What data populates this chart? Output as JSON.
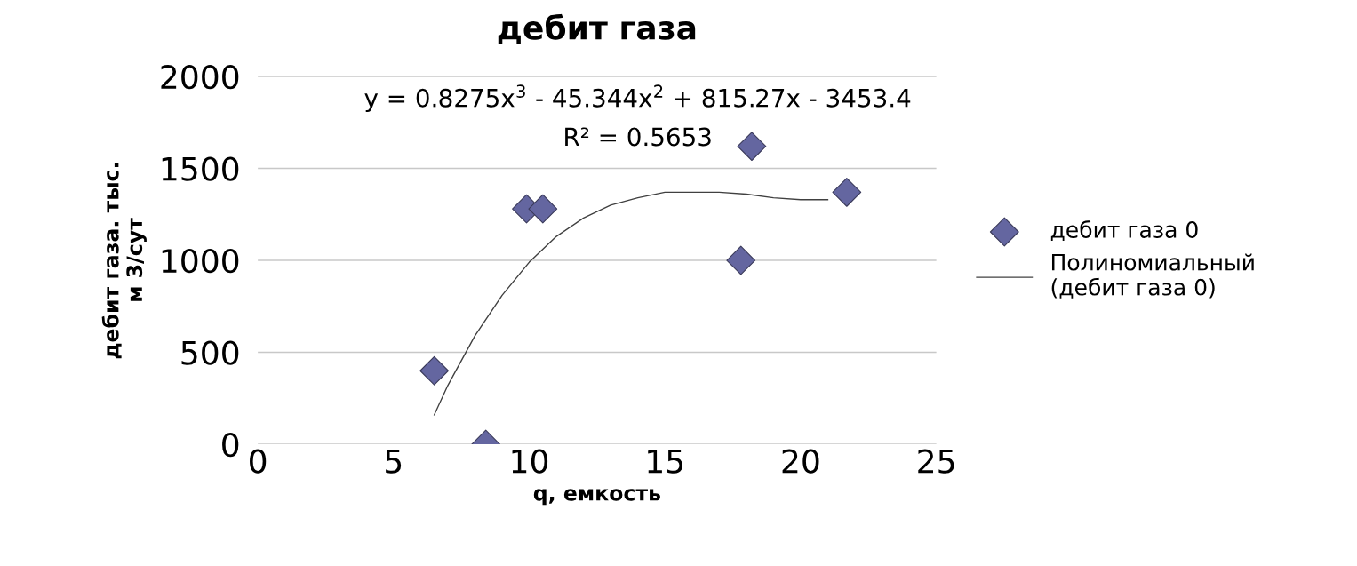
{
  "chart_data": {
    "type": "scatter",
    "title": "дебит газа",
    "xlabel": "q, емкость",
    "ylabel": "дебит газа. тыс.\nм 3/сут",
    "xlim": [
      0,
      25
    ],
    "xticks": [
      0,
      5,
      10,
      15,
      20,
      25
    ],
    "ylim": [
      0,
      2000
    ],
    "yticks": [
      0,
      500,
      1000,
      1500,
      2000
    ],
    "grid": "y",
    "legend": "right",
    "marker": "diamond",
    "series": [
      {
        "name": "дебит газа 0",
        "color": "#6466a0",
        "x": [
          6.5,
          8.4,
          9.9,
          10.5,
          17.8,
          18.2,
          21.7
        ],
        "values": [
          400,
          0,
          1280,
          1280,
          1000,
          1620,
          1370
        ]
      },
      {
        "name": "Полиномиальный\n(дебит газа 0)",
        "type": "line",
        "color": "#404040",
        "marker": "none",
        "line_style": "solid",
        "x": [
          6.5,
          7,
          8,
          9,
          10,
          11,
          12,
          13,
          14,
          15,
          16,
          17,
          18,
          19,
          20,
          21
        ],
        "values": [
          160,
          320,
          590,
          810,
          990,
          1130,
          1230,
          1300,
          1340,
          1370,
          1370,
          1370,
          1360,
          1340,
          1330,
          1330
        ]
      }
    ],
    "annotations": [
      "y = 0.8275x$^{3}$ - 45.344x$^{2}$ + 815.27x - 3453.4",
      "R² = 0.5653"
    ]
  }
}
